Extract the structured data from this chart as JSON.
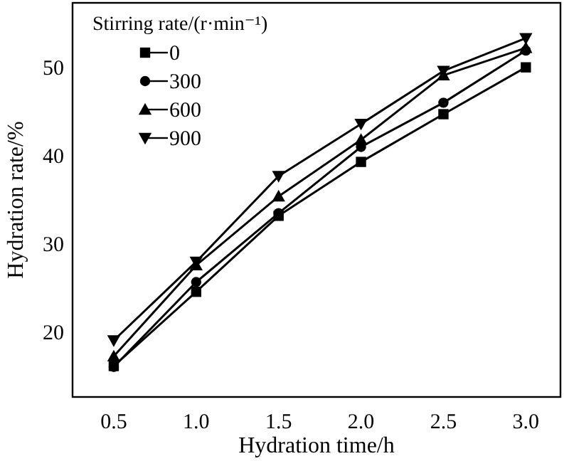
{
  "chart_data": {
    "type": "line",
    "xlabel": "Hydration time/h",
    "ylabel": "Hydration rate/%",
    "legend_title": "Stirring rate/(r·min⁻¹)",
    "legend": "top left",
    "x": [
      0.5,
      1.0,
      1.5,
      2.0,
      2.5,
      3.0
    ],
    "xlim": [
      0.25,
      3.21
    ],
    "xticks": [
      {
        "value": 0.5,
        "label": "0.5"
      },
      {
        "value": 1,
        "label": "1.0"
      },
      {
        "value": 1.5,
        "label": "1.5"
      },
      {
        "value": 2,
        "label": "2.0"
      },
      {
        "value": 2.5,
        "label": "2.5"
      },
      {
        "value": 3,
        "label": "3.0"
      }
    ],
    "ylim": [
      12.7,
      57.3
    ],
    "yticks": [
      20,
      30,
      40,
      50
    ],
    "series": [
      {
        "name": "0",
        "color": "#000000",
        "marker": "square",
        "values": [
          16.2,
          24.6,
          33.2,
          39.3,
          44.7,
          50.0
        ]
      },
      {
        "name": "300",
        "color": "#000000",
        "marker": "circle",
        "values": [
          16.1,
          25.7,
          33.5,
          41.0,
          46.0,
          51.9
        ]
      },
      {
        "name": "600",
        "color": "#000000",
        "marker": "triangle",
        "values": [
          17.3,
          27.6,
          35.4,
          41.8,
          49.1,
          52.2
        ]
      },
      {
        "name": "900",
        "color": "#000000",
        "marker": "triangle-down",
        "values": [
          19.1,
          28.0,
          37.7,
          43.6,
          49.6,
          53.3
        ]
      }
    ]
  }
}
